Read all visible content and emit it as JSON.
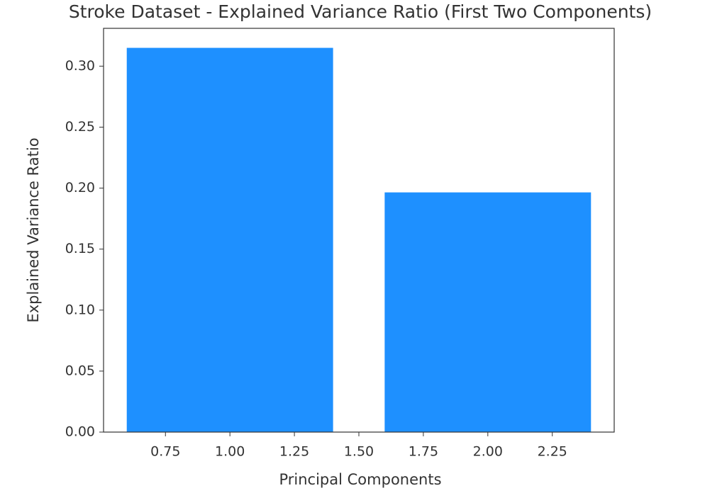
{
  "chart_data": {
    "type": "bar",
    "title": "Stroke Dataset - Explained Variance Ratio (First Two Components)",
    "x_label": "Principal Components",
    "y_label": "Explained Variance Ratio",
    "x": [
      1,
      2
    ],
    "values": [
      0.315,
      0.1965
    ],
    "color": "#1e90ff",
    "xlim": [
      0.51,
      2.49
    ],
    "xticks": [
      0.75,
      {
        "value": 1,
        "label": "1.00"
      },
      1.25,
      {
        "value": 1.5,
        "label": "1.50"
      },
      1.75,
      {
        "value": 2,
        "label": "2.00"
      },
      2.25
    ],
    "ylim": [
      0,
      0.331
    ],
    "yticks": [
      {
        "value": 0,
        "label": "0.00"
      },
      0.05,
      {
        "value": 0.1,
        "label": "0.10"
      },
      0.15,
      {
        "value": 0.2,
        "label": "0.20"
      },
      0.25,
      {
        "value": 0.3,
        "label": "0.30"
      }
    ]
  }
}
